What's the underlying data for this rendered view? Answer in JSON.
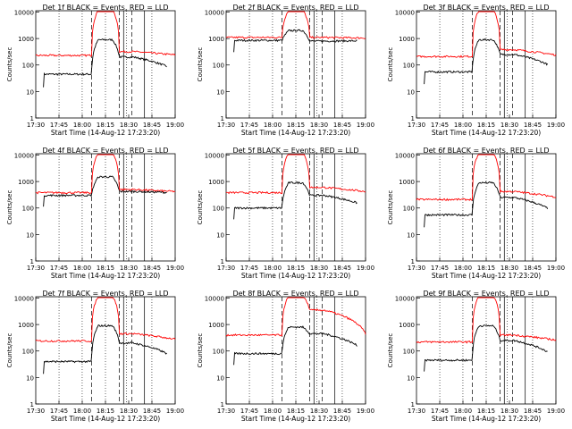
{
  "figure": {
    "ylabel": "Counts/sec",
    "xlabel": "Start Time (14-Aug-12 17:23:20)",
    "xticks": [
      "17:30",
      "17:45",
      "18:00",
      "18:15",
      "18:30",
      "18:45",
      "19:00"
    ],
    "yticks": [
      "1",
      "10",
      "100",
      "1000",
      "10000"
    ]
  },
  "chart_data": [
    {
      "type": "line",
      "title": "Det 1f BLACK = Events, RED = LLD",
      "series": [
        {
          "name": "Events",
          "color": "#000000",
          "baseline": 45,
          "peak": 900,
          "post": 200,
          "tail": 60
        },
        {
          "name": "LLD",
          "color": "#ff0000",
          "baseline": 230,
          "peak": 12000,
          "post": 320,
          "tail": 240
        }
      ]
    },
    {
      "type": "line",
      "title": "Det 2f BLACK = Events, RED = LLD",
      "series": [
        {
          "name": "Events",
          "color": "#000000",
          "baseline": 850,
          "peak": 2000,
          "post": 800,
          "tail": 820
        },
        {
          "name": "LLD",
          "color": "#ff0000",
          "baseline": 1100,
          "peak": 12000,
          "post": 1100,
          "tail": 1050
        }
      ]
    },
    {
      "type": "line",
      "title": "Det 3f BLACK = Events, RED = LLD",
      "series": [
        {
          "name": "Events",
          "color": "#000000",
          "baseline": 55,
          "peak": 900,
          "post": 250,
          "tail": 70
        },
        {
          "name": "LLD",
          "color": "#ff0000",
          "baseline": 210,
          "peak": 12000,
          "post": 380,
          "tail": 240
        }
      ]
    },
    {
      "type": "line",
      "title": "Det 4f BLACK = Events, RED = LLD",
      "series": [
        {
          "name": "Events",
          "color": "#000000",
          "baseline": 300,
          "peak": 1500,
          "post": 420,
          "tail": 380
        },
        {
          "name": "LLD",
          "color": "#ff0000",
          "baseline": 380,
          "peak": 12000,
          "post": 500,
          "tail": 420
        }
      ]
    },
    {
      "type": "line",
      "title": "Det 5f BLACK = Events, RED = LLD",
      "series": [
        {
          "name": "Events",
          "color": "#000000",
          "baseline": 100,
          "peak": 900,
          "post": 300,
          "tail": 120
        },
        {
          "name": "LLD",
          "color": "#ff0000",
          "baseline": 380,
          "peak": 12000,
          "post": 600,
          "tail": 420
        }
      ]
    },
    {
      "type": "line",
      "title": "Det 6f BLACK = Events, RED = LLD",
      "series": [
        {
          "name": "Events",
          "color": "#000000",
          "baseline": 55,
          "peak": 900,
          "post": 250,
          "tail": 60
        },
        {
          "name": "LLD",
          "color": "#ff0000",
          "baseline": 210,
          "peak": 12000,
          "post": 420,
          "tail": 260
        }
      ]
    },
    {
      "type": "line",
      "title": "Det 7f BLACK = Events, RED = LLD",
      "series": [
        {
          "name": "Events",
          "color": "#000000",
          "baseline": 40,
          "peak": 900,
          "post": 200,
          "tail": 50
        },
        {
          "name": "LLD",
          "color": "#ff0000",
          "baseline": 240,
          "peak": 12000,
          "post": 450,
          "tail": 280
        }
      ]
    },
    {
      "type": "line",
      "title": "Det 8f BLACK = Events, RED = LLD",
      "series": [
        {
          "name": "Events",
          "color": "#000000",
          "baseline": 80,
          "peak": 800,
          "post": 450,
          "tail": 90
        },
        {
          "name": "LLD",
          "color": "#ff0000",
          "baseline": 400,
          "peak": 12000,
          "post": 3500,
          "tail": 450
        }
      ]
    },
    {
      "type": "line",
      "title": "Det 9f BLACK = Events, RED = LLD",
      "series": [
        {
          "name": "Events",
          "color": "#000000",
          "baseline": 45,
          "peak": 900,
          "post": 250,
          "tail": 55
        },
        {
          "name": "LLD",
          "color": "#ff0000",
          "baseline": 220,
          "peak": 12000,
          "post": 400,
          "tail": 260
        }
      ]
    }
  ]
}
